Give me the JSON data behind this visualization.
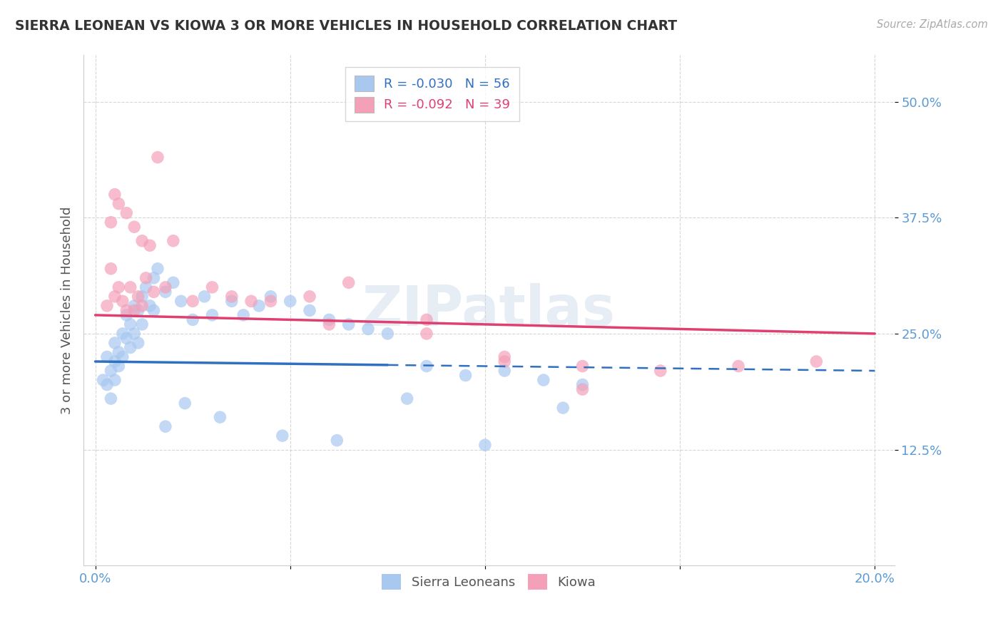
{
  "title": "SIERRA LEONEAN VS KIOWA 3 OR MORE VEHICLES IN HOUSEHOLD CORRELATION CHART",
  "source": "Source: ZipAtlas.com",
  "tick_color": "#5b9bd5",
  "ylabel": "3 or more Vehicles in Household",
  "xlim": [
    0.0,
    20.0
  ],
  "ylim": [
    0.0,
    55.0
  ],
  "y_ticks": [
    12.5,
    25.0,
    37.5,
    50.0
  ],
  "y_tick_labels": [
    "12.5%",
    "25.0%",
    "37.5%",
    "50.0%"
  ],
  "legend_R1": "R = -0.030",
  "legend_N1": "N = 56",
  "legend_R2": "R = -0.092",
  "legend_N2": "N = 39",
  "series1_color": "#a8c8f0",
  "series2_color": "#f4a0b8",
  "trend1_color": "#3070c0",
  "trend2_color": "#e04070",
  "trend1_solid_end": 7.5,
  "watermark": "ZIPatlas",
  "background_color": "#ffffff",
  "blue_scatter_x": [
    0.2,
    0.3,
    0.3,
    0.4,
    0.4,
    0.5,
    0.5,
    0.5,
    0.6,
    0.6,
    0.7,
    0.7,
    0.8,
    0.8,
    0.9,
    0.9,
    1.0,
    1.0,
    1.1,
    1.1,
    1.2,
    1.2,
    1.3,
    1.4,
    1.5,
    1.5,
    1.6,
    1.8,
    2.0,
    2.2,
    2.5,
    2.8,
    3.0,
    3.5,
    3.8,
    4.2,
    4.5,
    5.0,
    5.5,
    6.0,
    6.5,
    7.0,
    7.5,
    8.5,
    9.5,
    10.5,
    11.5,
    12.5,
    1.8,
    2.3,
    3.2,
    4.8,
    6.2,
    8.0,
    10.0,
    12.0
  ],
  "blue_scatter_y": [
    20.0,
    22.5,
    19.5,
    21.0,
    18.0,
    24.0,
    22.0,
    20.0,
    23.0,
    21.5,
    25.0,
    22.5,
    27.0,
    24.5,
    26.0,
    23.5,
    28.0,
    25.0,
    27.5,
    24.0,
    29.0,
    26.0,
    30.0,
    28.0,
    31.0,
    27.5,
    32.0,
    29.5,
    30.5,
    28.5,
    26.5,
    29.0,
    27.0,
    28.5,
    27.0,
    28.0,
    29.0,
    28.5,
    27.5,
    26.5,
    26.0,
    25.5,
    25.0,
    21.5,
    20.5,
    21.0,
    20.0,
    19.5,
    15.0,
    17.5,
    16.0,
    14.0,
    13.5,
    18.0,
    13.0,
    17.0
  ],
  "pink_scatter_x": [
    0.3,
    0.4,
    0.5,
    0.6,
    0.7,
    0.8,
    0.9,
    1.0,
    1.1,
    1.2,
    1.3,
    1.5,
    1.8,
    2.5,
    3.5,
    4.5,
    5.5,
    6.5,
    8.5,
    10.5,
    12.5,
    14.5,
    16.5,
    18.5,
    0.4,
    0.5,
    0.6,
    0.8,
    1.0,
    1.2,
    1.4,
    1.6,
    2.0,
    3.0,
    4.0,
    6.0,
    8.5,
    10.5,
    12.5
  ],
  "pink_scatter_y": [
    28.0,
    32.0,
    29.0,
    30.0,
    28.5,
    27.5,
    30.0,
    27.5,
    29.0,
    28.0,
    31.0,
    29.5,
    30.0,
    28.5,
    29.0,
    28.5,
    29.0,
    30.5,
    26.5,
    22.0,
    21.5,
    21.0,
    21.5,
    22.0,
    37.0,
    40.0,
    39.0,
    38.0,
    36.5,
    35.0,
    34.5,
    44.0,
    35.0,
    30.0,
    28.5,
    26.0,
    25.0,
    22.5,
    19.0
  ]
}
